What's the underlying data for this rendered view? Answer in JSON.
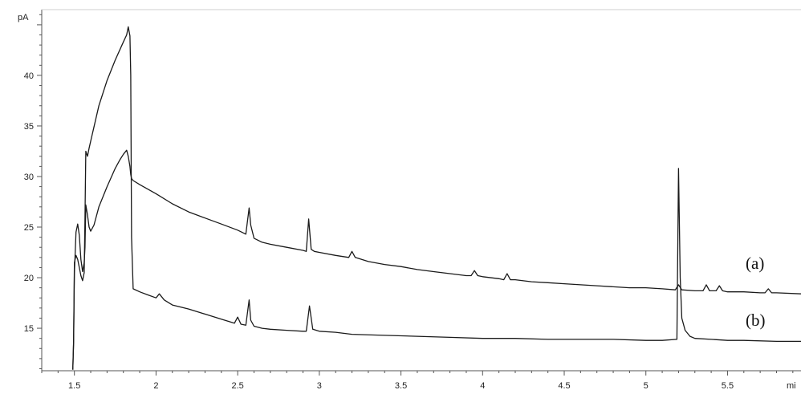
{
  "chart_data": {
    "type": "line",
    "ylabel": "pA",
    "xlabel": "mi",
    "xlim": [
      1.3,
      5.95
    ],
    "ylim": [
      10.8,
      46.5
    ],
    "x_ticks": [
      "1.5",
      "2",
      "2.5",
      "3",
      "3.5",
      "4",
      "4.5",
      "5",
      "5.5"
    ],
    "x_tick_values": [
      1.5,
      2,
      2.5,
      3,
      3.5,
      4,
      4.5,
      5,
      5.5
    ],
    "y_ticks": [
      "15",
      "20",
      "25",
      "30",
      "35",
      "40"
    ],
    "y_tick_values": [
      15,
      20,
      25,
      30,
      35,
      40
    ],
    "grid": false,
    "series": [
      {
        "name": "(a)",
        "color": "#1a1a1a",
        "x": [
          1.49,
          1.495,
          1.5,
          1.51,
          1.52,
          1.53,
          1.54,
          1.55,
          1.56,
          1.565,
          1.57,
          1.58,
          1.59,
          1.6,
          1.62,
          1.65,
          1.7,
          1.75,
          1.78,
          1.8,
          1.82,
          1.83,
          1.84,
          1.845,
          1.85,
          1.86,
          1.9,
          2.0,
          2.1,
          2.2,
          2.3,
          2.4,
          2.5,
          2.55,
          2.57,
          2.58,
          2.6,
          2.65,
          2.7,
          2.8,
          2.9,
          2.92,
          2.935,
          2.95,
          2.97,
          3.0,
          3.1,
          3.18,
          3.2,
          3.22,
          3.3,
          3.4,
          3.5,
          3.6,
          3.7,
          3.8,
          3.9,
          3.93,
          3.95,
          3.97,
          4.0,
          4.1,
          4.13,
          4.15,
          4.17,
          4.2,
          4.3,
          4.4,
          4.5,
          4.6,
          4.7,
          4.8,
          4.9,
          5.0,
          5.1,
          5.18,
          5.2,
          5.22,
          5.3,
          5.35,
          5.37,
          5.39,
          5.43,
          5.45,
          5.47,
          5.5,
          5.6,
          5.7,
          5.73,
          5.75,
          5.77,
          5.8,
          5.95
        ],
        "y": [
          10.9,
          13.5,
          20.5,
          24.5,
          25.3,
          24.2,
          21.8,
          20.6,
          21.5,
          23.0,
          27.2,
          26.2,
          25.0,
          24.6,
          25.2,
          27.0,
          29.0,
          30.8,
          31.7,
          32.2,
          32.6,
          32.0,
          31.0,
          30.2,
          29.8,
          29.6,
          29.2,
          28.3,
          27.3,
          26.5,
          25.9,
          25.3,
          24.7,
          24.3,
          26.9,
          25.2,
          23.9,
          23.5,
          23.3,
          23.0,
          22.7,
          22.6,
          25.8,
          22.8,
          22.6,
          22.5,
          22.2,
          22.0,
          22.6,
          22.0,
          21.6,
          21.3,
          21.1,
          20.8,
          20.6,
          20.4,
          20.2,
          20.2,
          20.7,
          20.2,
          20.1,
          19.9,
          19.8,
          20.4,
          19.8,
          19.8,
          19.6,
          19.5,
          19.4,
          19.3,
          19.2,
          19.1,
          19.0,
          19.0,
          18.9,
          18.8,
          19.3,
          18.8,
          18.7,
          18.7,
          19.3,
          18.7,
          18.7,
          19.2,
          18.7,
          18.6,
          18.6,
          18.5,
          18.5,
          18.9,
          18.5,
          18.5,
          18.4
        ]
      },
      {
        "name": "(b)",
        "color": "#1a1a1a",
        "x": [
          1.49,
          1.495,
          1.5,
          1.51,
          1.52,
          1.53,
          1.54,
          1.55,
          1.56,
          1.565,
          1.57,
          1.58,
          1.59,
          1.6,
          1.65,
          1.7,
          1.75,
          1.8,
          1.82,
          1.83,
          1.84,
          1.845,
          1.85,
          1.86,
          1.9,
          1.95,
          2.0,
          2.02,
          2.05,
          2.1,
          2.2,
          2.3,
          2.4,
          2.48,
          2.5,
          2.52,
          2.55,
          2.57,
          2.58,
          2.6,
          2.65,
          2.7,
          2.8,
          2.9,
          2.92,
          2.94,
          2.96,
          3.0,
          3.1,
          3.2,
          3.4,
          3.6,
          3.8,
          4.0,
          4.2,
          4.4,
          4.6,
          4.8,
          5.0,
          5.1,
          5.19,
          5.2,
          5.21,
          5.22,
          5.24,
          5.27,
          5.3,
          5.4,
          5.5,
          5.6,
          5.8,
          5.95
        ],
        "y": [
          10.9,
          13.8,
          21.5,
          22.2,
          21.8,
          21.0,
          20.2,
          19.7,
          20.5,
          26.0,
          32.5,
          32.0,
          32.8,
          33.5,
          37.0,
          39.5,
          41.5,
          43.3,
          44.0,
          44.8,
          43.9,
          40.0,
          24.0,
          18.9,
          18.6,
          18.3,
          18.0,
          18.4,
          17.8,
          17.3,
          16.9,
          16.4,
          15.9,
          15.5,
          16.1,
          15.4,
          15.3,
          17.8,
          15.8,
          15.2,
          15.0,
          14.9,
          14.8,
          14.7,
          14.7,
          17.2,
          14.9,
          14.7,
          14.6,
          14.4,
          14.3,
          14.2,
          14.1,
          14.0,
          14.0,
          13.9,
          13.9,
          13.9,
          13.8,
          13.8,
          13.9,
          30.8,
          20.0,
          16.0,
          14.8,
          14.2,
          14.0,
          13.9,
          13.8,
          13.8,
          13.7,
          13.7
        ]
      }
    ]
  }
}
